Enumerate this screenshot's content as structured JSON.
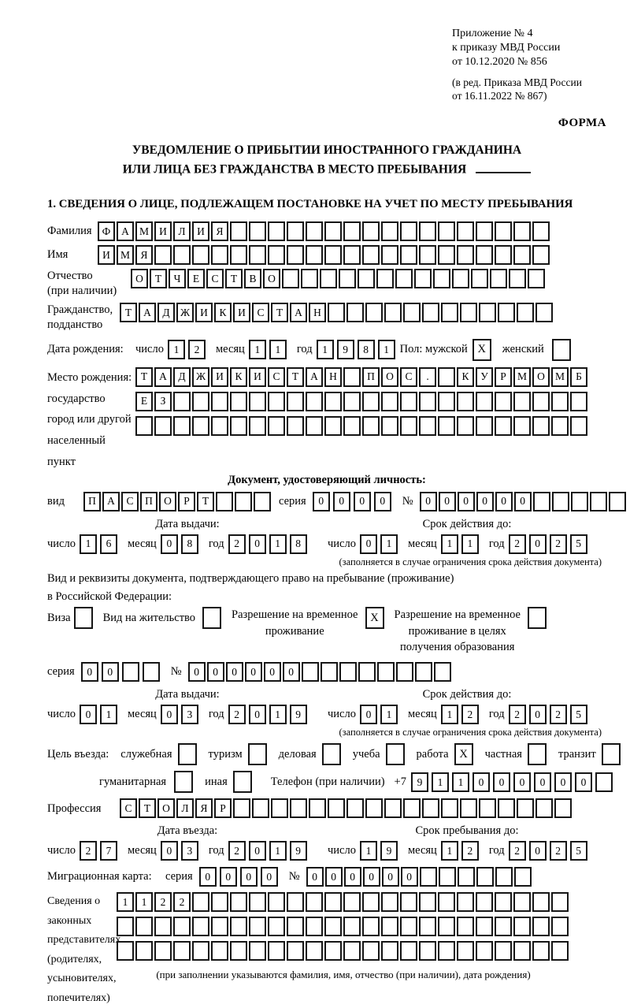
{
  "header": {
    "appendix": [
      "Приложение № 4",
      "к приказу МВД России",
      "от 10.12.2020 № 856"
    ],
    "amendment": [
      "(в ред. Приказа МВД России",
      "от 16.11.2022 № 867)"
    ],
    "forma": "ФОРМА"
  },
  "title": {
    "line1": "УВЕДОМЛЕНИЕ О ПРИБЫТИИ ИНОСТРАННОГО ГРАЖДАНИНА",
    "line2": "ИЛИ ЛИЦА БЕЗ ГРАЖДАНСТВА В МЕСТО ПРЕБЫВАНИЯ"
  },
  "section1_heading": "1. СВЕДЕНИЯ О ЛИЦЕ, ПОДЛЕЖАЩЕМ ПОСТАНОВКЕ НА УЧЕТ ПО МЕСТУ ПРЕБЫВАНИЯ",
  "labels": {
    "day": "число",
    "month": "месяц",
    "year": "год",
    "series": "серия",
    "number": "№"
  },
  "person": {
    "surname": {
      "label": "Фамилия",
      "value": "ФАМИЛИЯ",
      "count": 24
    },
    "name": {
      "label": "Имя",
      "value": "ИМЯ",
      "count": 24
    },
    "patronymic": {
      "label1": "Отчество",
      "label2": "(при наличии)",
      "value": "ОТЧЕСТВО",
      "count": 22
    },
    "citizenship": {
      "label1": "Гражданство,",
      "label2": "подданство",
      "value": "ТАДЖИКИСТАН",
      "count": 23
    },
    "birth": {
      "label": "Дата рождения:",
      "day": {
        "value": "12",
        "count": 2
      },
      "month": {
        "value": "11",
        "count": 2
      },
      "year": {
        "value": "1981",
        "count": 4
      },
      "sex_label": "Пол: мужской",
      "male_checked": "X",
      "female_label": "женский",
      "female_checked": ""
    },
    "birthplace": {
      "label1": "Место рождения:",
      "label2": "государство",
      "label3": "город или другой",
      "label4": "населенный пункт",
      "row1": {
        "value": "ТАДЖИКИСТАН ПОС. КУРМОМБ",
        "count": 24
      },
      "row2": {
        "value": "ЕЗ",
        "count": 24
      },
      "row3": {
        "value": "",
        "count": 24
      }
    }
  },
  "identity_doc": {
    "heading": "Документ, удостоверяющий личность:",
    "kind_label": "вид",
    "kind": {
      "value": "ПАСПОРТ",
      "count": 10
    },
    "series": {
      "value": "0000",
      "count": 4
    },
    "number": {
      "value": "000000",
      "count": 11
    },
    "issue_heading": "Дата выдачи:",
    "issue": {
      "day": {
        "value": "16",
        "count": 2
      },
      "month": {
        "value": "08",
        "count": 2
      },
      "year": {
        "value": "2018",
        "count": 4
      }
    },
    "valid_heading": "Срок действия до:",
    "valid": {
      "day": {
        "value": "01",
        "count": 2
      },
      "month": {
        "value": "11",
        "count": 2
      },
      "year": {
        "value": "2025",
        "count": 4
      }
    },
    "note": "(заполняется в случае ограничения срока действия документа)"
  },
  "residence_doc": {
    "intro1": "Вид и реквизиты документа, подтверждающего право на пребывание (проживание)",
    "intro2": "в Российской Федерации:",
    "visa_label": "Виза",
    "visa_checked": "",
    "permit_label": "Вид на жительство",
    "permit_checked": "",
    "temp_label1": "Разрешение на временное",
    "temp_label2": "проживание",
    "temp_checked": "X",
    "edu_label1": "Разрешение на временное",
    "edu_label2": "проживание в целях",
    "edu_label3": "получения образования",
    "edu_checked": "",
    "series": {
      "value": "00",
      "count": 4
    },
    "number": {
      "value": "000000",
      "count": 14
    },
    "issue_heading": "Дата выдачи:",
    "issue": {
      "day": {
        "value": "01",
        "count": 2
      },
      "month": {
        "value": "03",
        "count": 2
      },
      "year": {
        "value": "2019",
        "count": 4
      }
    },
    "valid_heading": "Срок действия до:",
    "valid": {
      "day": {
        "value": "01",
        "count": 2
      },
      "month": {
        "value": "12",
        "count": 2
      },
      "year": {
        "value": "2025",
        "count": 4
      }
    },
    "note": "(заполняется в случае ограничения срока действия документа)"
  },
  "visit": {
    "purpose_label": "Цель въезда:",
    "p1": {
      "label": "служебная",
      "checked": ""
    },
    "p2": {
      "label": "туризм",
      "checked": ""
    },
    "p3": {
      "label": "деловая",
      "checked": ""
    },
    "p4": {
      "label": "учеба",
      "checked": ""
    },
    "p5": {
      "label": "работа",
      "checked": "X"
    },
    "p6": {
      "label": "частная",
      "checked": ""
    },
    "p7": {
      "label": "транзит",
      "checked": ""
    },
    "p8": {
      "label": "гуманитарная",
      "checked": ""
    },
    "p9": {
      "label": "иная",
      "checked": ""
    },
    "phone_label": "Телефон (при наличии)",
    "phone_prefix": "+7",
    "phone": {
      "value": "911000000",
      "count": 10
    },
    "profession_label": "Профессия",
    "profession": {
      "value": "СТОЛЯР",
      "count": 24
    },
    "entry_heading": "Дата въезда:",
    "entry": {
      "day": {
        "value": "27",
        "count": 2
      },
      "month": {
        "value": "03",
        "count": 2
      },
      "year": {
        "value": "2019",
        "count": 4
      }
    },
    "stay_heading": "Срок пребывания до:",
    "stay": {
      "day": {
        "value": "19",
        "count": 2
      },
      "month": {
        "value": "12",
        "count": 2
      },
      "year": {
        "value": "2025",
        "count": 4
      }
    },
    "migration_label": "Миграционная карта:",
    "mig_series": {
      "value": "0000",
      "count": 4
    },
    "mig_number": {
      "value": "000000",
      "count": 12
    }
  },
  "representatives": {
    "label1": "Сведения о",
    "label2": "законных",
    "label3": "представителях",
    "label4": "(родителях,",
    "label5": "усыновителях,",
    "label6": "попечителях)",
    "row1": {
      "value": "1122",
      "count": 24
    },
    "row2": {
      "value": "",
      "count": 24
    },
    "row3": {
      "value": "",
      "count": 24
    },
    "note": "(при заполнении указываются фамилия, имя, отчество (при наличии), дата рождения)"
  }
}
